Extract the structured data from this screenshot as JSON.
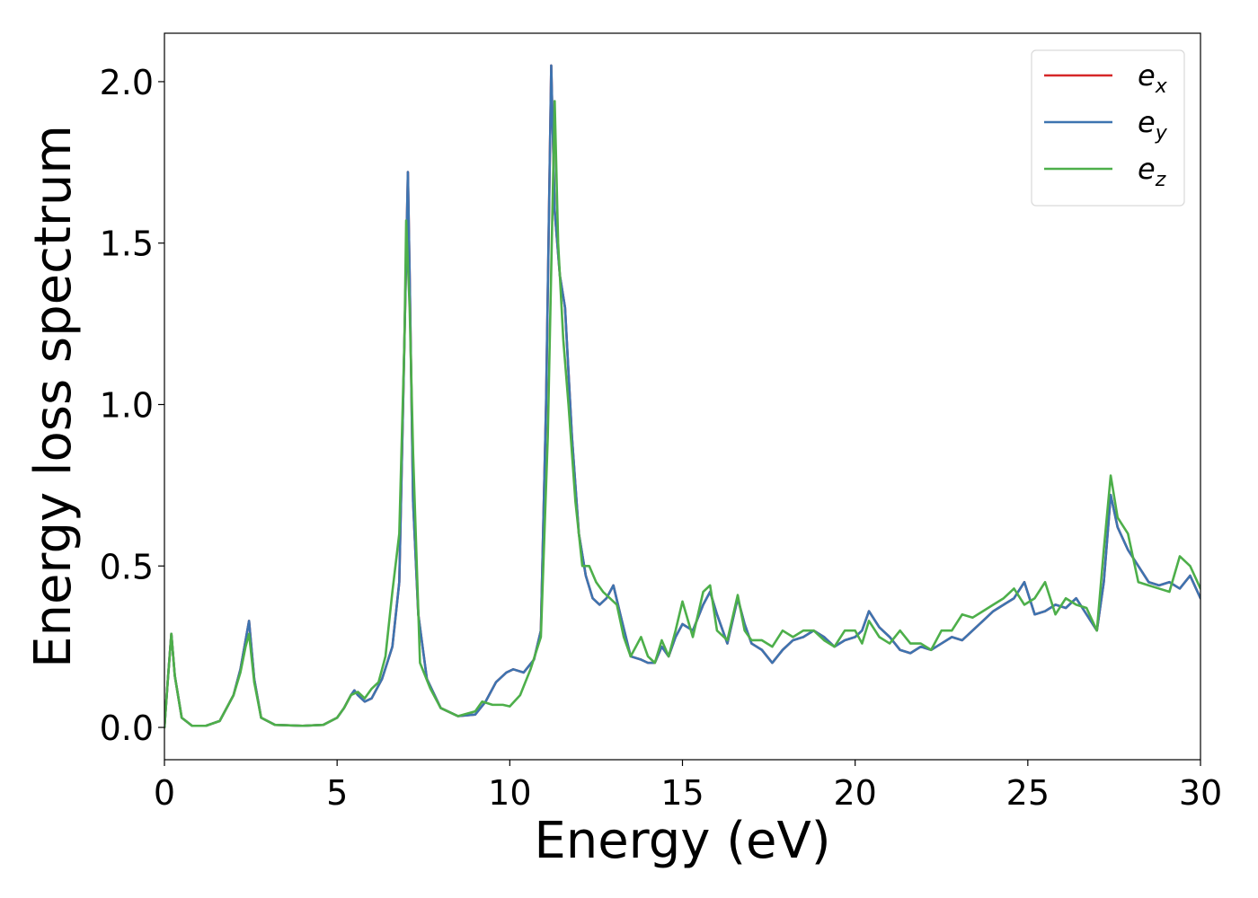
{
  "chart_data": {
    "type": "line",
    "title": "",
    "xlabel": "Energy (eV)",
    "ylabel": "Energy loss spectrum",
    "xlim": [
      0,
      30
    ],
    "ylim": [
      -0.1,
      2.15
    ],
    "xticks": [
      0,
      5,
      10,
      15,
      20,
      25,
      30
    ],
    "xtick_labels": [
      "0",
      "5",
      "10",
      "15",
      "20",
      "25",
      "30"
    ],
    "yticks": [
      0.0,
      0.5,
      1.0,
      1.5,
      2.0
    ],
    "ytick_labels": [
      "0.0",
      "0.5",
      "1.0",
      "1.5",
      "2.0"
    ],
    "grid": false,
    "legend_position": "top-right",
    "series": [
      {
        "name": "e_x",
        "label_base": "e",
        "label_sub": "x",
        "color": "#d62728",
        "x": [
          0,
          0.1,
          0.2,
          0.3,
          0.5,
          0.8,
          1.2,
          1.6,
          2.0,
          2.2,
          2.35,
          2.45,
          2.6,
          2.8,
          3.2,
          4.0,
          4.6,
          5.0,
          5.2,
          5.4,
          5.5,
          5.6,
          5.8,
          6.0,
          6.3,
          6.6,
          6.8,
          6.95,
          7.05,
          7.1,
          7.2,
          7.35,
          7.6,
          8.0,
          8.5,
          9.0,
          9.3,
          9.6,
          9.9,
          10.1,
          10.4,
          10.7,
          10.9,
          11.05,
          11.2,
          11.3,
          11.45,
          11.6,
          11.8,
          12.0,
          12.2,
          12.4,
          12.6,
          12.8,
          13.0,
          13.2,
          13.5,
          13.8,
          14.0,
          14.2,
          14.4,
          14.6,
          14.8,
          15.0,
          15.3,
          15.6,
          15.8,
          16.0,
          16.3,
          16.6,
          16.8,
          17.0,
          17.3,
          17.6,
          17.9,
          18.2,
          18.5,
          18.8,
          19.1,
          19.4,
          19.7,
          20.0,
          20.2,
          20.4,
          20.7,
          21.0,
          21.3,
          21.6,
          21.9,
          22.2,
          22.5,
          22.8,
          23.1,
          23.4,
          23.7,
          24.0,
          24.3,
          24.6,
          24.9,
          25.2,
          25.5,
          25.8,
          26.1,
          26.4,
          26.7,
          27.0,
          27.2,
          27.4,
          27.6,
          27.9,
          28.2,
          28.5,
          28.8,
          29.1,
          29.4,
          29.7,
          30.0
        ],
        "values": [
          0.0,
          0.15,
          0.29,
          0.16,
          0.03,
          0.005,
          0.005,
          0.02,
          0.1,
          0.18,
          0.27,
          0.33,
          0.15,
          0.03,
          0.008,
          0.005,
          0.008,
          0.03,
          0.06,
          0.1,
          0.115,
          0.1,
          0.08,
          0.09,
          0.15,
          0.25,
          0.45,
          1.2,
          1.72,
          1.4,
          0.7,
          0.35,
          0.15,
          0.06,
          0.035,
          0.04,
          0.08,
          0.14,
          0.17,
          0.18,
          0.17,
          0.21,
          0.3,
          1.0,
          2.05,
          1.6,
          1.4,
          1.3,
          0.9,
          0.6,
          0.47,
          0.4,
          0.38,
          0.4,
          0.44,
          0.35,
          0.22,
          0.21,
          0.2,
          0.2,
          0.25,
          0.22,
          0.28,
          0.32,
          0.3,
          0.38,
          0.42,
          0.35,
          0.26,
          0.4,
          0.32,
          0.26,
          0.24,
          0.2,
          0.24,
          0.27,
          0.28,
          0.3,
          0.28,
          0.25,
          0.27,
          0.28,
          0.3,
          0.36,
          0.31,
          0.28,
          0.24,
          0.23,
          0.25,
          0.24,
          0.26,
          0.28,
          0.27,
          0.3,
          0.33,
          0.36,
          0.38,
          0.4,
          0.45,
          0.35,
          0.36,
          0.38,
          0.37,
          0.4,
          0.35,
          0.3,
          0.45,
          0.72,
          0.62,
          0.55,
          0.5,
          0.45,
          0.44,
          0.45,
          0.43,
          0.47,
          0.4
        ]
      },
      {
        "name": "e_y",
        "label_base": "e",
        "label_sub": "y",
        "color": "#3d74b0",
        "x": [
          0,
          0.1,
          0.2,
          0.3,
          0.5,
          0.8,
          1.2,
          1.6,
          2.0,
          2.2,
          2.35,
          2.45,
          2.6,
          2.8,
          3.2,
          4.0,
          4.6,
          5.0,
          5.2,
          5.4,
          5.5,
          5.6,
          5.8,
          6.0,
          6.3,
          6.6,
          6.8,
          6.95,
          7.05,
          7.1,
          7.2,
          7.35,
          7.6,
          8.0,
          8.5,
          9.0,
          9.3,
          9.6,
          9.9,
          10.1,
          10.4,
          10.7,
          10.9,
          11.05,
          11.2,
          11.3,
          11.45,
          11.6,
          11.8,
          12.0,
          12.2,
          12.4,
          12.6,
          12.8,
          13.0,
          13.2,
          13.5,
          13.8,
          14.0,
          14.2,
          14.4,
          14.6,
          14.8,
          15.0,
          15.3,
          15.6,
          15.8,
          16.0,
          16.3,
          16.6,
          16.8,
          17.0,
          17.3,
          17.6,
          17.9,
          18.2,
          18.5,
          18.8,
          19.1,
          19.4,
          19.7,
          20.0,
          20.2,
          20.4,
          20.7,
          21.0,
          21.3,
          21.6,
          21.9,
          22.2,
          22.5,
          22.8,
          23.1,
          23.4,
          23.7,
          24.0,
          24.3,
          24.6,
          24.9,
          25.2,
          25.5,
          25.8,
          26.1,
          26.4,
          26.7,
          27.0,
          27.2,
          27.4,
          27.6,
          27.9,
          28.2,
          28.5,
          28.8,
          29.1,
          29.4,
          29.7,
          30.0
        ],
        "values": [
          0.0,
          0.15,
          0.29,
          0.16,
          0.03,
          0.005,
          0.005,
          0.02,
          0.1,
          0.18,
          0.27,
          0.33,
          0.15,
          0.03,
          0.008,
          0.005,
          0.008,
          0.03,
          0.06,
          0.1,
          0.115,
          0.1,
          0.08,
          0.09,
          0.15,
          0.25,
          0.45,
          1.2,
          1.72,
          1.4,
          0.7,
          0.35,
          0.15,
          0.06,
          0.035,
          0.04,
          0.08,
          0.14,
          0.17,
          0.18,
          0.17,
          0.21,
          0.3,
          1.0,
          2.05,
          1.6,
          1.4,
          1.3,
          0.9,
          0.6,
          0.47,
          0.4,
          0.38,
          0.4,
          0.44,
          0.35,
          0.22,
          0.21,
          0.2,
          0.2,
          0.25,
          0.22,
          0.28,
          0.32,
          0.3,
          0.38,
          0.42,
          0.35,
          0.26,
          0.4,
          0.32,
          0.26,
          0.24,
          0.2,
          0.24,
          0.27,
          0.28,
          0.3,
          0.28,
          0.25,
          0.27,
          0.28,
          0.3,
          0.36,
          0.31,
          0.28,
          0.24,
          0.23,
          0.25,
          0.24,
          0.26,
          0.28,
          0.27,
          0.3,
          0.33,
          0.36,
          0.38,
          0.4,
          0.45,
          0.35,
          0.36,
          0.38,
          0.37,
          0.4,
          0.35,
          0.3,
          0.45,
          0.72,
          0.62,
          0.55,
          0.5,
          0.45,
          0.44,
          0.45,
          0.43,
          0.47,
          0.4
        ]
      },
      {
        "name": "e_z",
        "label_base": "e",
        "label_sub": "z",
        "color": "#4daf4a",
        "x": [
          0,
          0.1,
          0.2,
          0.3,
          0.5,
          0.8,
          1.2,
          1.6,
          2.0,
          2.2,
          2.35,
          2.45,
          2.6,
          2.8,
          3.2,
          4.0,
          4.6,
          5.0,
          5.2,
          5.4,
          5.6,
          5.8,
          6.0,
          6.2,
          6.4,
          6.6,
          6.8,
          6.95,
          7.0,
          7.1,
          7.2,
          7.4,
          7.7,
          8.0,
          8.5,
          9.0,
          9.2,
          9.5,
          9.8,
          10.0,
          10.3,
          10.6,
          10.9,
          11.1,
          11.3,
          11.4,
          11.55,
          11.7,
          11.9,
          12.1,
          12.3,
          12.5,
          12.7,
          12.9,
          13.1,
          13.3,
          13.5,
          13.8,
          14.0,
          14.2,
          14.4,
          14.6,
          14.8,
          15.0,
          15.3,
          15.6,
          15.8,
          16.0,
          16.3,
          16.6,
          16.8,
          17.0,
          17.3,
          17.6,
          17.9,
          18.2,
          18.5,
          18.8,
          19.1,
          19.4,
          19.7,
          20.0,
          20.2,
          20.4,
          20.7,
          21.0,
          21.3,
          21.6,
          21.9,
          22.2,
          22.5,
          22.8,
          23.1,
          23.4,
          23.7,
          24.0,
          24.3,
          24.6,
          24.9,
          25.2,
          25.5,
          25.8,
          26.1,
          26.4,
          26.7,
          27.0,
          27.2,
          27.4,
          27.6,
          27.9,
          28.2,
          28.5,
          28.8,
          29.1,
          29.4,
          29.7,
          30.0
        ],
        "values": [
          0.0,
          0.15,
          0.29,
          0.16,
          0.03,
          0.005,
          0.005,
          0.02,
          0.1,
          0.17,
          0.25,
          0.29,
          0.14,
          0.03,
          0.008,
          0.005,
          0.008,
          0.03,
          0.06,
          0.1,
          0.11,
          0.09,
          0.12,
          0.14,
          0.22,
          0.42,
          0.6,
          1.2,
          1.57,
          1.3,
          0.85,
          0.2,
          0.12,
          0.06,
          0.035,
          0.05,
          0.08,
          0.07,
          0.07,
          0.065,
          0.1,
          0.18,
          0.28,
          0.9,
          1.94,
          1.5,
          1.2,
          1.0,
          0.7,
          0.5,
          0.5,
          0.45,
          0.42,
          0.4,
          0.38,
          0.28,
          0.22,
          0.28,
          0.22,
          0.2,
          0.27,
          0.22,
          0.3,
          0.39,
          0.28,
          0.42,
          0.44,
          0.3,
          0.27,
          0.41,
          0.3,
          0.27,
          0.27,
          0.25,
          0.3,
          0.28,
          0.3,
          0.3,
          0.27,
          0.25,
          0.3,
          0.3,
          0.26,
          0.33,
          0.28,
          0.26,
          0.3,
          0.26,
          0.26,
          0.24,
          0.3,
          0.3,
          0.35,
          0.34,
          0.36,
          0.38,
          0.4,
          0.43,
          0.38,
          0.4,
          0.45,
          0.35,
          0.4,
          0.38,
          0.37,
          0.3,
          0.55,
          0.78,
          0.65,
          0.6,
          0.45,
          0.44,
          0.43,
          0.42,
          0.53,
          0.5,
          0.43
        ]
      }
    ]
  }
}
